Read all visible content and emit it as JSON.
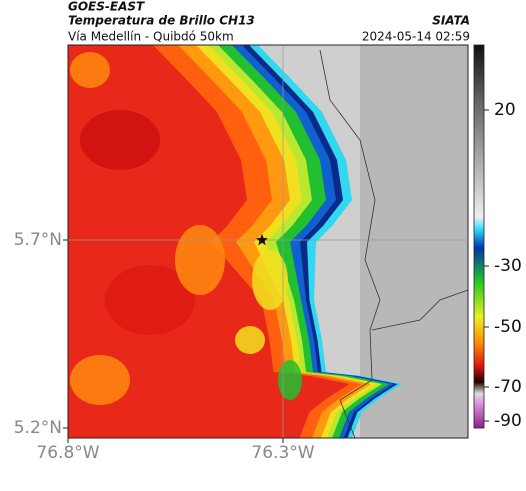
{
  "header": {
    "title": "GOES-EAST",
    "subtitle": "Temperatura de Brillo CH13",
    "location": "Vía Medellín - Quibdó 50km",
    "brand": "SIATA",
    "datetime": "2024-05-14 02:59"
  },
  "map": {
    "lat_labels": [
      "5.7°N",
      "5.2°N"
    ],
    "lon_labels": [
      "76.8°W",
      "76.3°W"
    ]
  },
  "colorbar": {
    "ticks": [
      20,
      -30,
      -50,
      -70,
      -90
    ]
  }
}
